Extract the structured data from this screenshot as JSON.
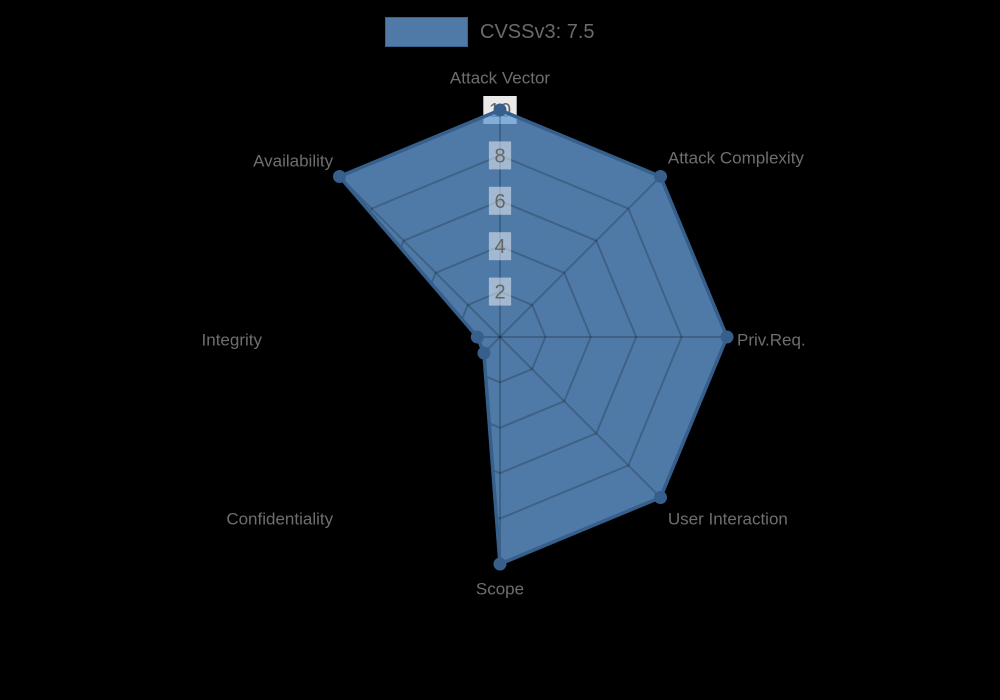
{
  "legend": {
    "label": "CVSSv3: 7.5"
  },
  "chart_data": {
    "type": "radar",
    "title": "",
    "categories": [
      "Attack Vector",
      "Attack Complexity",
      "Priv.Req.",
      "User Interaction",
      "Scope",
      "Confidentiality",
      "Integrity",
      "Availability"
    ],
    "series": [
      {
        "name": "CVSSv3: 7.5",
        "values": [
          10,
          10,
          10,
          10,
          10,
          1,
          1,
          10
        ]
      }
    ],
    "rmin": 0,
    "rmax": 10,
    "ticks": [
      2,
      4,
      6,
      8,
      10
    ],
    "grid": true,
    "grid_shape": "polygon",
    "legend_position": "top",
    "colors": {
      "fill_displayed": "#4f7aa8",
      "fill_rgba": "rgba(101,156,215,0.78)",
      "border": "#375f8c",
      "grid_rgba": "rgba(0,0,0,0.2)",
      "axis_label": "#6e6e6e",
      "tick_text": "#666666",
      "tick_backdrop": "rgba(255,255,255,0.48)",
      "tick_backdrop_outer": "#eaeaea",
      "background": "#000000"
    }
  }
}
